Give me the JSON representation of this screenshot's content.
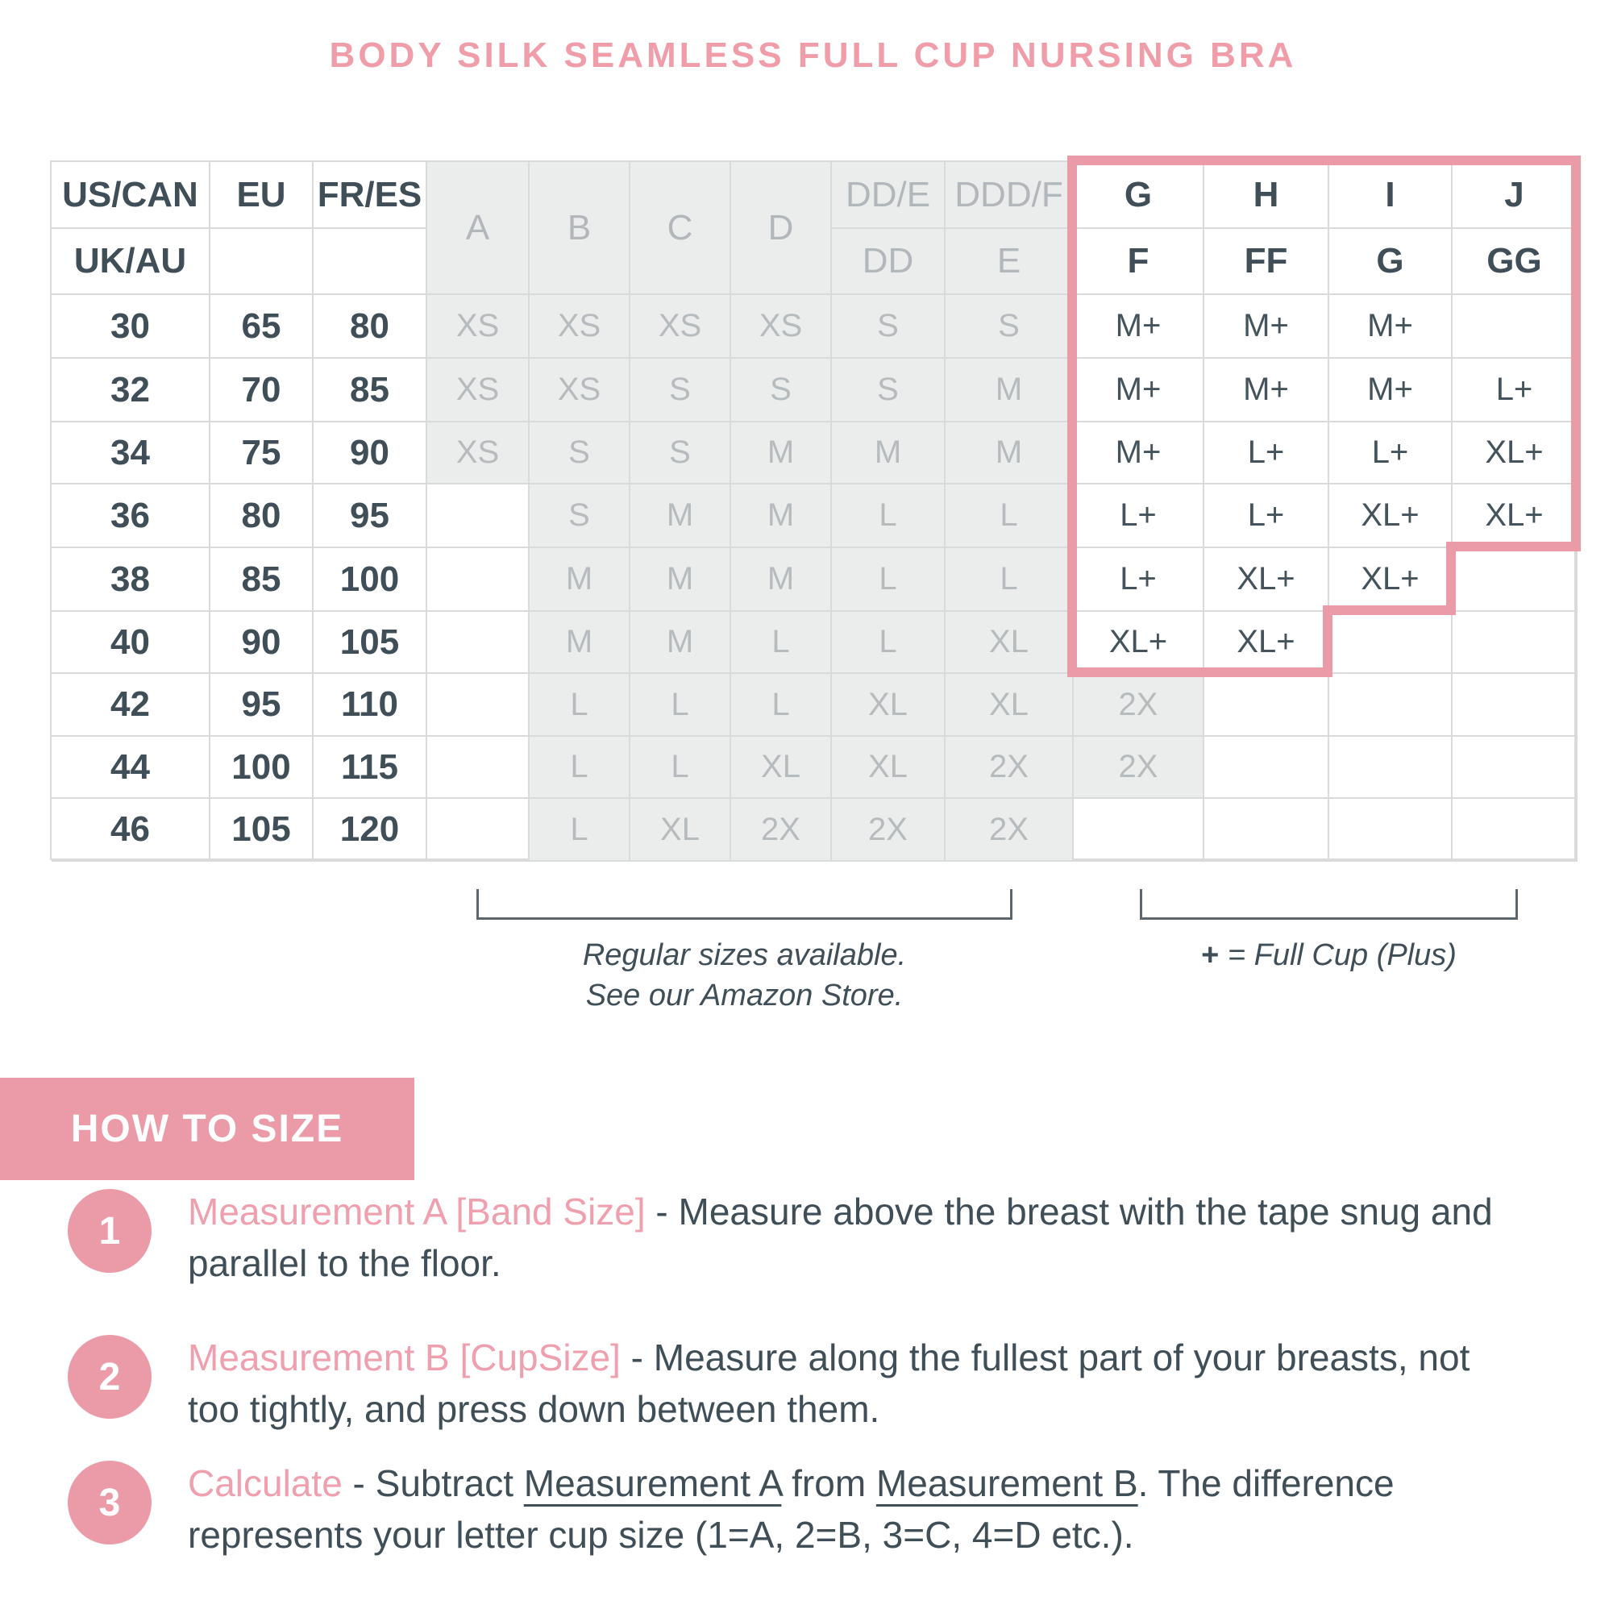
{
  "title": "BODY SILK SEAMLESS FULL CUP NURSING BRA",
  "colors": {
    "accent_pink": "#eb9ba8",
    "title_pink": "#f09daa",
    "dark_text": "#3f4e57",
    "gray_text": "#b6bbbe",
    "gray_cell_bg": "#ebecec",
    "grid_line": "#d9dadb",
    "bracket_line": "#5d666c"
  },
  "table": {
    "header": {
      "region_row1": [
        "US/CAN",
        "EU",
        "FR/ES"
      ],
      "region_row2": "UK/AU",
      "cups_merged": [
        "A",
        "B",
        "C",
        "D"
      ],
      "cups_split_top": [
        "DD/E",
        "DDD/F"
      ],
      "cups_split_bottom": [
        "DD",
        "E"
      ],
      "plus_cups_top": [
        "G",
        "H",
        "I",
        "J"
      ],
      "plus_cups_bottom": [
        "F",
        "FF",
        "G",
        "GG"
      ]
    },
    "rows": [
      {
        "us": "30",
        "eu": "65",
        "fr": "80",
        "sizes": [
          "XS",
          "XS",
          "XS",
          "XS",
          "S",
          "S",
          "M+",
          "M+",
          "M+",
          ""
        ],
        "gray": [
          0,
          5
        ]
      },
      {
        "us": "32",
        "eu": "70",
        "fr": "85",
        "sizes": [
          "XS",
          "XS",
          "S",
          "S",
          "S",
          "M",
          "M+",
          "M+",
          "M+",
          "L+"
        ],
        "gray": [
          0,
          5
        ]
      },
      {
        "us": "34",
        "eu": "75",
        "fr": "90",
        "sizes": [
          "XS",
          "S",
          "S",
          "M",
          "M",
          "M",
          "M+",
          "L+",
          "L+",
          "XL+"
        ],
        "gray": [
          0,
          5
        ]
      },
      {
        "us": "36",
        "eu": "80",
        "fr": "95",
        "sizes": [
          "",
          "S",
          "M",
          "M",
          "L",
          "L",
          "L+",
          "L+",
          "XL+",
          "XL+"
        ],
        "gray": [
          1,
          5
        ]
      },
      {
        "us": "38",
        "eu": "85",
        "fr": "100",
        "sizes": [
          "",
          "M",
          "M",
          "M",
          "L",
          "L",
          "L+",
          "XL+",
          "XL+",
          ""
        ],
        "gray": [
          1,
          5
        ]
      },
      {
        "us": "40",
        "eu": "90",
        "fr": "105",
        "sizes": [
          "",
          "M",
          "M",
          "L",
          "L",
          "XL",
          "XL+",
          "XL+",
          "",
          ""
        ],
        "gray": [
          1,
          5
        ]
      },
      {
        "us": "42",
        "eu": "95",
        "fr": "110",
        "sizes": [
          "",
          "L",
          "L",
          "L",
          "XL",
          "XL",
          "2X",
          "",
          "",
          ""
        ],
        "gray": [
          1,
          6
        ]
      },
      {
        "us": "44",
        "eu": "100",
        "fr": "115",
        "sizes": [
          "",
          "L",
          "L",
          "XL",
          "XL",
          "2X",
          "2X",
          "",
          "",
          ""
        ],
        "gray": [
          1,
          6
        ]
      },
      {
        "us": "46",
        "eu": "105",
        "fr": "120",
        "sizes": [
          "",
          "L",
          "XL",
          "2X",
          "2X",
          "2X",
          "",
          "",
          "",
          ""
        ],
        "gray": [
          1,
          5
        ]
      }
    ]
  },
  "notes": {
    "regular_line1": "Regular sizes available.",
    "regular_line2": "See our Amazon Store.",
    "plus_symbol": "+",
    "plus_rest": " = Full Cup (Plus)"
  },
  "how_to_size": {
    "heading": "HOW TO SIZE",
    "steps": [
      {
        "num": "1",
        "lead": "Measurement A [Band Size]",
        "line1": [
          {
            "t": " - Measure above the breast with the tape snug and"
          }
        ],
        "line2": "parallel to the floor."
      },
      {
        "num": "2",
        "lead": "Measurement B [CupSize]",
        "line1": [
          {
            "t": " - Measure along the fullest part of your breasts, not"
          }
        ],
        "line2": "too tightly, and press down between them."
      },
      {
        "num": "3",
        "lead": "Calculate",
        "line1": [
          {
            "t": " - Subtract "
          },
          {
            "t": "Measurement A",
            "u": true
          },
          {
            "t": " from "
          },
          {
            "t": "Measurement B",
            "u": true
          },
          {
            "t": ". The difference"
          }
        ],
        "line2": "represents your letter cup size (1=A, 2=B, 3=C, 4=D etc.)."
      }
    ]
  }
}
